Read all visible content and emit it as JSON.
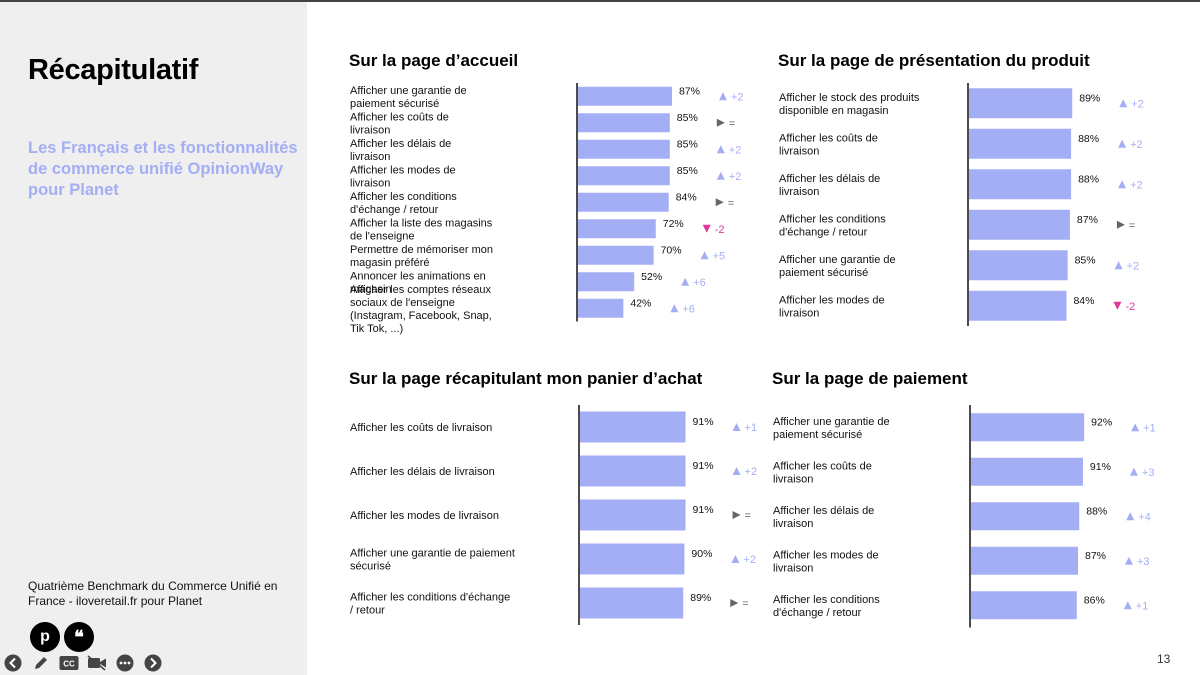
{
  "sidebar": {
    "title": "Récapitulatif",
    "subtitle": "Les Français et les fonctionnalités de commerce unifié OpinionWay pour Planet",
    "source": "Quatrième Benchmark du Commerce Unifié en France - iloveretail.fr pour Planet"
  },
  "page_number": "13",
  "colors": {
    "bar": "#a3aef5",
    "up": "#a3aef5",
    "down": "#e0389a",
    "same": "#666666"
  },
  "chart_data": [
    {
      "type": "bar",
      "orientation": "horizontal",
      "title": "Sur la page d’accueil",
      "categories": [
        "Afficher une garantie de paiement sécurisé",
        "Afficher les coûts de livraison",
        "Afficher les délais de livraison",
        "Afficher les modes de livraison",
        "Afficher les conditions d'échange / retour",
        "Afficher la liste des magasins de l'enseigne",
        "Permettre de mémoriser mon magasin préféré",
        "Annoncer les animations en magasin",
        "Afficher les comptes réseaux sociaux de l'enseigne (Instagram, Facebook, Snap, Tik Tok, ...)"
      ],
      "values": [
        87,
        85,
        85,
        85,
        84,
        72,
        70,
        52,
        42
      ],
      "value_labels": [
        "87%",
        "85%",
        "85%",
        "85%",
        "84%",
        "72%",
        "70%",
        "52%",
        "42%"
      ],
      "trends": [
        "up",
        "same",
        "up",
        "up",
        "same",
        "down",
        "up",
        "up",
        "up"
      ],
      "changes": [
        "+2",
        "=",
        "+2",
        "+2",
        "=",
        "-2",
        "+5",
        "+6",
        "+6"
      ],
      "xlim": [
        0,
        100
      ]
    },
    {
      "type": "bar",
      "orientation": "horizontal",
      "title": "Sur la page de présentation du produit",
      "categories": [
        "Afficher le stock des produits disponible en magasin",
        "Afficher les coûts de livraison",
        "Afficher les délais de livraison",
        "Afficher les conditions d'échange / retour",
        "Afficher une garantie de paiement sécurisé",
        "Afficher les modes de livraison"
      ],
      "values": [
        89,
        88,
        88,
        87,
        85,
        84
      ],
      "value_labels": [
        "89%",
        "88%",
        "88%",
        "87%",
        "85%",
        "84%"
      ],
      "trends": [
        "up",
        "up",
        "up",
        "same",
        "up",
        "down"
      ],
      "changes": [
        "+2",
        "+2",
        "+2",
        "=",
        "+2",
        "-2"
      ],
      "xlim": [
        0,
        100
      ]
    },
    {
      "type": "bar",
      "orientation": "horizontal",
      "title": "Sur la page récapitulant mon panier d’achat",
      "categories": [
        "Afficher les coûts de livraison",
        "Afficher les délais de livraison",
        "Afficher les modes de livraison",
        "Afficher une garantie de paiement sécurisé",
        "Afficher les conditions d'échange / retour"
      ],
      "values": [
        91,
        91,
        91,
        90,
        89
      ],
      "value_labels": [
        "91%",
        "91%",
        "91%",
        "90%",
        "89%"
      ],
      "trends": [
        "up",
        "up",
        "same",
        "up",
        "same"
      ],
      "changes": [
        "+1",
        "+2",
        "=",
        "+2",
        "="
      ],
      "xlim": [
        0,
        100
      ]
    },
    {
      "type": "bar",
      "orientation": "horizontal",
      "title": "Sur la page de paiement",
      "categories": [
        "Afficher une garantie de paiement sécurisé",
        "Afficher les coûts de livraison",
        "Afficher les délais de livraison",
        "Afficher les modes de livraison",
        "Afficher les conditions d'échange / retour"
      ],
      "values": [
        92,
        91,
        88,
        87,
        86
      ],
      "value_labels": [
        "92%",
        "91%",
        "88%",
        "87%",
        "86%"
      ],
      "trends": [
        "up",
        "up",
        "up",
        "up",
        "up"
      ],
      "changes": [
        "+1",
        "+3",
        "+4",
        "+3",
        "+1"
      ],
      "xlim": [
        0,
        100
      ]
    }
  ]
}
